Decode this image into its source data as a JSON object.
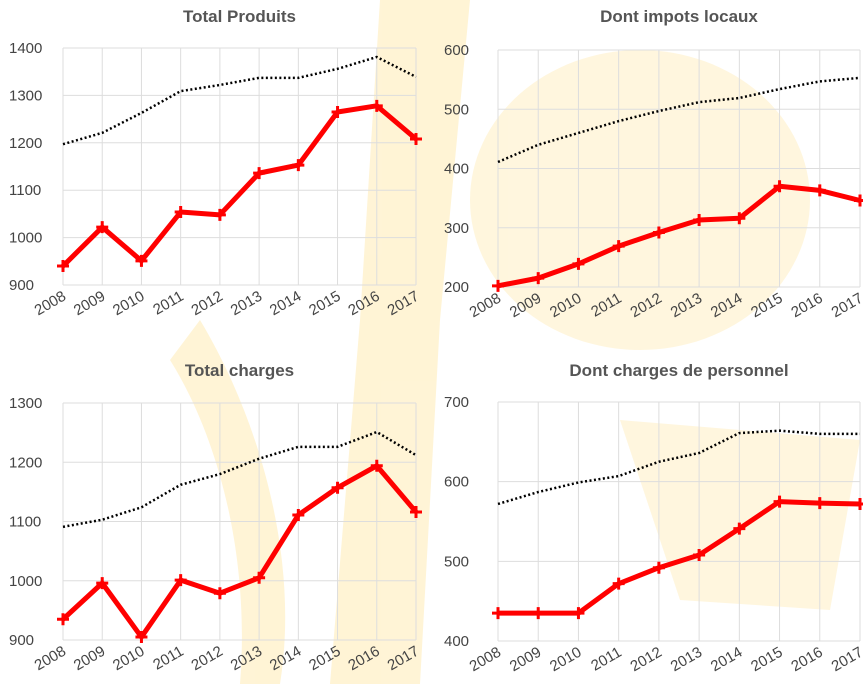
{
  "chart_data": [
    {
      "type": "line",
      "title": "Total Produits",
      "categories": [
        "2008",
        "2009",
        "2010",
        "2011",
        "2012",
        "2013",
        "2014",
        "2015",
        "2016",
        "2017"
      ],
      "series": [
        {
          "color": "#ff0000",
          "marker": "plus",
          "line_style": "solid",
          "values": [
            940,
            1022,
            951,
            1054,
            1048,
            1136,
            1153,
            1265,
            1278,
            1208
          ]
        },
        {
          "color": "#000000",
          "line_style": "dotted",
          "values": [
            1197,
            1221,
            1263,
            1309,
            1322,
            1337,
            1337,
            1356,
            1381,
            1339
          ]
        }
      ],
      "ylim": [
        900,
        1400
      ],
      "yticks": [
        900,
        1000,
        1100,
        1200,
        1300,
        1400
      ],
      "grid": true
    },
    {
      "type": "line",
      "title": "Dont impots locaux",
      "categories": [
        "2008",
        "2009",
        "2010",
        "2011",
        "2012",
        "2013",
        "2014",
        "2015",
        "2016",
        "2017"
      ],
      "series": [
        {
          "color": "#ff0000",
          "marker": "plus",
          "line_style": "solid",
          "values": [
            202,
            215,
            239,
            269,
            292,
            313,
            316,
            370,
            363,
            346
          ]
        },
        {
          "color": "#000000",
          "line_style": "dotted",
          "values": [
            411,
            440,
            460,
            480,
            497,
            512,
            519,
            534,
            547,
            553
          ]
        }
      ],
      "ylim": [
        200,
        600
      ],
      "yticks": [
        200,
        300,
        400,
        500,
        600
      ],
      "grid": true
    },
    {
      "type": "line",
      "title": "Total charges",
      "categories": [
        "2008",
        "2009",
        "2010",
        "2011",
        "2012",
        "2013",
        "2014",
        "2015",
        "2016",
        "2017"
      ],
      "series": [
        {
          "color": "#ff0000",
          "marker": "plus",
          "line_style": "solid",
          "values": [
            935,
            996,
            905,
            1001,
            979,
            1005,
            1111,
            1157,
            1194,
            1116
          ]
        },
        {
          "color": "#000000",
          "line_style": "dotted",
          "values": [
            1091,
            1103,
            1124,
            1162,
            1180,
            1206,
            1226,
            1226,
            1251,
            1212
          ]
        }
      ],
      "ylim": [
        900,
        1300
      ],
      "yticks": [
        900,
        1000,
        1100,
        1200,
        1300
      ],
      "grid": true
    },
    {
      "type": "line",
      "title": "Dont charges de personnel",
      "categories": [
        "2008",
        "2009",
        "2010",
        "2011",
        "2012",
        "2013",
        "2014",
        "2015",
        "2016",
        "2017"
      ],
      "series": [
        {
          "color": "#ff0000",
          "marker": "plus",
          "line_style": "solid",
          "values": [
            435,
            435,
            435,
            472,
            492,
            508,
            541,
            575,
            573,
            572
          ]
        },
        {
          "color": "#000000",
          "line_style": "dotted",
          "values": [
            572,
            587,
            599,
            607,
            625,
            636,
            661,
            664,
            660,
            660
          ]
        }
      ],
      "ylim": [
        400,
        700
      ],
      "yticks": [
        400,
        500,
        600,
        700
      ],
      "grid": true
    }
  ]
}
